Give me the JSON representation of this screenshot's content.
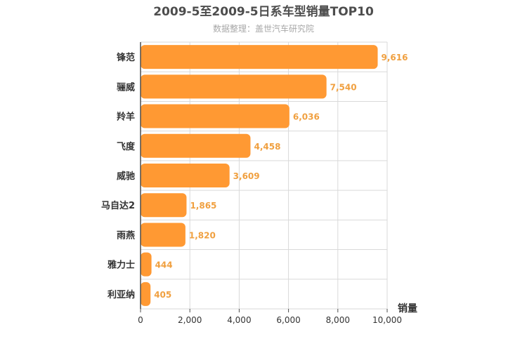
{
  "chart_data": {
    "type": "bar",
    "orientation": "horizontal",
    "title": "2009-5至2009-5日系车型销量TOP10",
    "subtitle": "数据整理：盖世汽车研究院",
    "xlabel": "销量",
    "ylabel": "",
    "categories": [
      "锋范",
      "骊威",
      "羚羊",
      "飞度",
      "威驰",
      "马自达2",
      "雨燕",
      "雅力士",
      "利亚纳"
    ],
    "values": [
      9616,
      7540,
      6036,
      4458,
      3609,
      1865,
      1820,
      444,
      405
    ],
    "value_labels": [
      "9,616",
      "7,540",
      "6,036",
      "4,458",
      "3,609",
      "1,865",
      "1,820",
      "444",
      "405"
    ],
    "xlim": [
      0,
      10000
    ],
    "xticks": [
      0,
      2000,
      4000,
      6000,
      8000,
      10000
    ],
    "xtick_labels": [
      "0",
      "2,000",
      "4,000",
      "6,000",
      "8,000",
      "10,000"
    ],
    "grid": true,
    "legend": "none",
    "colors": {
      "bar": "#ff9933",
      "data_label": "#f0a040",
      "grid": "#d9d9d9",
      "axis": "#4d4d4d"
    }
  }
}
